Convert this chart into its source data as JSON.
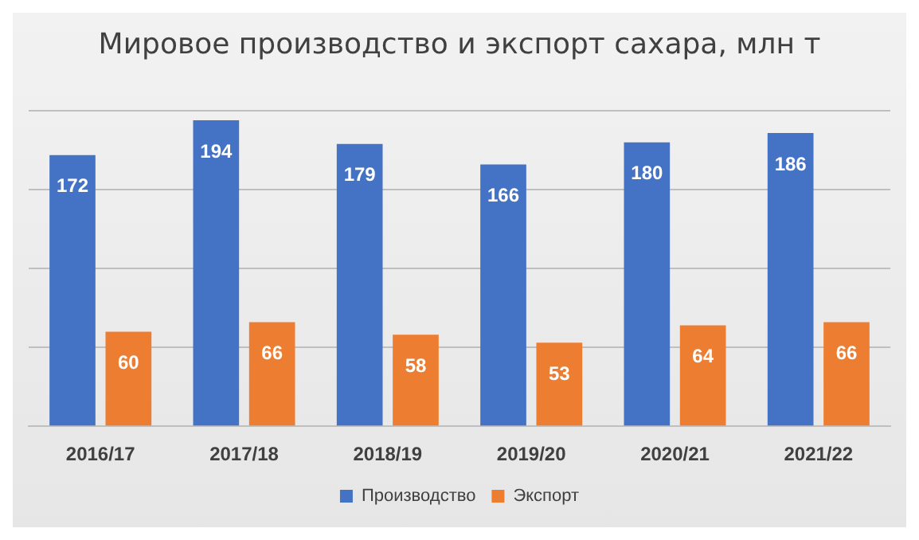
{
  "chart_data": {
    "type": "bar",
    "title": "Мировое производство и экспорт сахара, млн т",
    "categories": [
      "2016/17",
      "2017/18",
      "2018/19",
      "2019/20",
      "2020/21",
      "2021/22"
    ],
    "series": [
      {
        "name": "Производство",
        "color": "#4472c4",
        "values": [
          172,
          194,
          179,
          166,
          180,
          186
        ]
      },
      {
        "name": "Экспорт",
        "color": "#ed7d31",
        "values": [
          60,
          66,
          58,
          53,
          64,
          66
        ]
      }
    ],
    "ylim": [
      0,
      200
    ],
    "yticks": [
      {
        "value": 0,
        "label": null
      },
      {
        "value": 50,
        "label": null
      },
      {
        "value": 100,
        "label": null
      },
      {
        "value": 150,
        "label": null
      },
      {
        "value": 200,
        "label": null
      }
    ],
    "tick_labels": "x",
    "grid": "y",
    "legend": "bottom",
    "data_labels": true
  }
}
